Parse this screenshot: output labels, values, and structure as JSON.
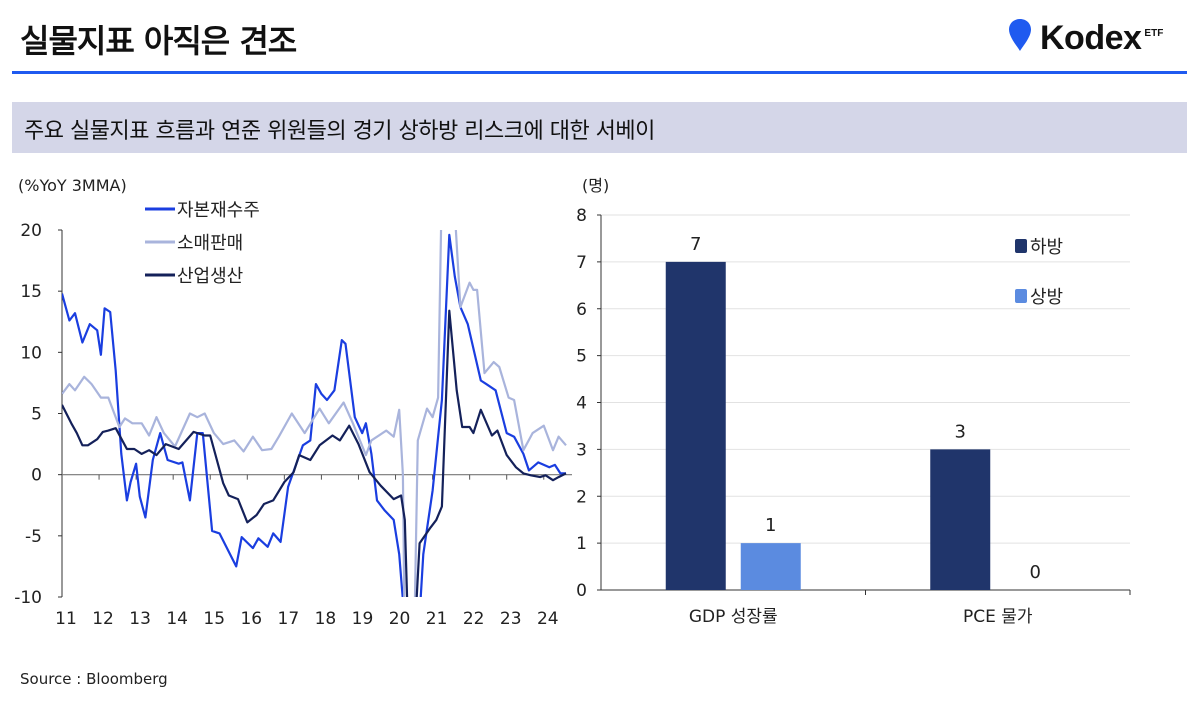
{
  "header": {
    "title": "실물지표 아직은 견조",
    "logo_text": "Kodex",
    "logo_suffix": "ETF",
    "brand_color": "#1f5af0"
  },
  "subtitle": "주요 실물지표 흐름과 연준 위원들의 경기 상하방 리스크에 대한 서베이",
  "source": "Source : Bloomberg",
  "chart_data": [
    {
      "type": "line",
      "ylabel": "(%YoY 3MMA)",
      "ylim": [
        -10,
        20
      ],
      "yticks": [
        "20",
        "15",
        "10",
        "5",
        "0",
        "-5",
        "-10"
      ],
      "xlim": [
        11,
        24.6
      ],
      "xticks": [
        "11",
        "12",
        "13",
        "14",
        "15",
        "16",
        "17",
        "18",
        "19",
        "20",
        "21",
        "22",
        "23",
        "24"
      ],
      "legend_position": "top-left",
      "series": [
        {
          "name": "자본재수주",
          "color": "#1a3ee0",
          "points": [
            [
              11.0,
              14.8
            ],
            [
              11.2,
              12.6
            ],
            [
              11.35,
              13.2
            ],
            [
              11.55,
              10.8
            ],
            [
              11.75,
              12.3
            ],
            [
              11.95,
              11.8
            ],
            [
              12.05,
              9.8
            ],
            [
              12.15,
              13.6
            ],
            [
              12.3,
              13.3
            ],
            [
              12.45,
              8.5
            ],
            [
              12.6,
              1.7
            ],
            [
              12.75,
              -2.1
            ],
            [
              12.85,
              -0.6
            ],
            [
              13.0,
              0.9
            ],
            [
              13.1,
              -1.8
            ],
            [
              13.25,
              -3.5
            ],
            [
              13.45,
              1.2
            ],
            [
              13.65,
              3.4
            ],
            [
              13.85,
              1.2
            ],
            [
              14.15,
              0.9
            ],
            [
              14.25,
              1.0
            ],
            [
              14.45,
              -2.1
            ],
            [
              14.65,
              3.4
            ],
            [
              14.8,
              3.4
            ],
            [
              15.05,
              -4.6
            ],
            [
              15.25,
              -4.8
            ],
            [
              15.7,
              -7.5
            ],
            [
              15.85,
              -5.1
            ],
            [
              16.15,
              -6.0
            ],
            [
              16.3,
              -5.2
            ],
            [
              16.55,
              -5.9
            ],
            [
              16.7,
              -4.8
            ],
            [
              16.9,
              -5.5
            ],
            [
              17.1,
              -1.0
            ],
            [
              17.5,
              2.4
            ],
            [
              17.7,
              2.8
            ],
            [
              17.85,
              7.4
            ],
            [
              18.0,
              6.6
            ],
            [
              18.15,
              6.1
            ],
            [
              18.35,
              6.9
            ],
            [
              18.55,
              11.0
            ],
            [
              18.65,
              10.7
            ],
            [
              18.9,
              4.7
            ],
            [
              19.1,
              3.4
            ],
            [
              19.2,
              4.2
            ],
            [
              19.35,
              1.7
            ],
            [
              19.5,
              -2.1
            ],
            [
              19.7,
              -2.9
            ],
            [
              19.95,
              -3.7
            ],
            [
              20.1,
              -6.5
            ],
            [
              20.3,
              -14
            ],
            [
              20.6,
              -14
            ],
            [
              20.75,
              -6.5
            ],
            [
              21.0,
              -1.3
            ],
            [
              21.25,
              6.1
            ],
            [
              21.45,
              19.6
            ],
            [
              21.6,
              16.2
            ],
            [
              21.75,
              13.7
            ],
            [
              21.95,
              12.3
            ],
            [
              22.3,
              7.7
            ],
            [
              22.45,
              7.4
            ],
            [
              22.7,
              6.9
            ],
            [
              23.0,
              3.4
            ],
            [
              23.2,
              3.1
            ],
            [
              23.45,
              1.7
            ],
            [
              23.6,
              0.35
            ],
            [
              23.85,
              1.0
            ],
            [
              24.15,
              0.6
            ],
            [
              24.3,
              0.8
            ],
            [
              24.45,
              0.1
            ],
            [
              24.6,
              0.1
            ]
          ]
        },
        {
          "name": "소매판매",
          "color": "#a9b4dc",
          "points": [
            [
              11.0,
              6.6
            ],
            [
              11.2,
              7.4
            ],
            [
              11.35,
              6.9
            ],
            [
              11.6,
              8.0
            ],
            [
              11.8,
              7.4
            ],
            [
              12.05,
              6.3
            ],
            [
              12.25,
              6.3
            ],
            [
              12.55,
              3.9
            ],
            [
              12.7,
              4.6
            ],
            [
              12.9,
              4.2
            ],
            [
              13.15,
              4.2
            ],
            [
              13.35,
              3.2
            ],
            [
              13.55,
              4.7
            ],
            [
              13.75,
              3.4
            ],
            [
              14.05,
              2.3
            ],
            [
              14.45,
              5.0
            ],
            [
              14.65,
              4.7
            ],
            [
              14.85,
              5.0
            ],
            [
              15.1,
              3.4
            ],
            [
              15.35,
              2.5
            ],
            [
              15.65,
              2.8
            ],
            [
              15.9,
              1.9
            ],
            [
              16.15,
              3.1
            ],
            [
              16.4,
              2.0
            ],
            [
              16.65,
              2.1
            ],
            [
              16.85,
              3.1
            ],
            [
              17.2,
              5.0
            ],
            [
              17.55,
              3.4
            ],
            [
              17.95,
              5.4
            ],
            [
              18.2,
              4.2
            ],
            [
              18.6,
              5.9
            ],
            [
              18.85,
              4.2
            ],
            [
              19.2,
              1.6
            ],
            [
              19.35,
              2.8
            ],
            [
              19.75,
              3.6
            ],
            [
              19.95,
              3.1
            ],
            [
              20.1,
              5.3
            ],
            [
              20.2,
              0
            ],
            [
              20.25,
              -14
            ],
            [
              20.5,
              -14
            ],
            [
              20.6,
              2.8
            ],
            [
              20.85,
              5.4
            ],
            [
              21.0,
              4.7
            ],
            [
              21.15,
              6.3
            ],
            [
              21.25,
              24
            ],
            [
              21.55,
              24
            ],
            [
              21.75,
              13.7
            ],
            [
              22.0,
              15.7
            ],
            [
              22.1,
              15.1
            ],
            [
              22.2,
              15.1
            ],
            [
              22.4,
              8.3
            ],
            [
              22.65,
              9.2
            ],
            [
              22.8,
              8.8
            ],
            [
              23.05,
              6.3
            ],
            [
              23.2,
              6.1
            ],
            [
              23.45,
              2.0
            ],
            [
              23.7,
              3.4
            ],
            [
              24.0,
              4.0
            ],
            [
              24.25,
              2.0
            ],
            [
              24.4,
              3.1
            ],
            [
              24.6,
              2.4
            ]
          ]
        },
        {
          "name": "산업생산",
          "color": "#14215a",
          "points": [
            [
              11.0,
              5.7
            ],
            [
              11.25,
              4.2
            ],
            [
              11.4,
              3.4
            ],
            [
              11.55,
              2.4
            ],
            [
              11.7,
              2.4
            ],
            [
              11.95,
              2.9
            ],
            [
              12.1,
              3.5
            ],
            [
              12.25,
              3.6
            ],
            [
              12.45,
              3.8
            ],
            [
              12.75,
              2.1
            ],
            [
              12.95,
              2.1
            ],
            [
              13.15,
              1.7
            ],
            [
              13.35,
              2.0
            ],
            [
              13.55,
              1.6
            ],
            [
              13.8,
              2.5
            ],
            [
              14.15,
              2.1
            ],
            [
              14.55,
              3.5
            ],
            [
              14.85,
              3.2
            ],
            [
              15.0,
              3.2
            ],
            [
              15.35,
              -0.7
            ],
            [
              15.5,
              -1.7
            ],
            [
              15.75,
              -2.0
            ],
            [
              16.0,
              -3.9
            ],
            [
              16.25,
              -3.3
            ],
            [
              16.45,
              -2.4
            ],
            [
              16.7,
              -2.1
            ],
            [
              17.0,
              -0.6
            ],
            [
              17.25,
              0.2
            ],
            [
              17.4,
              1.6
            ],
            [
              17.7,
              1.2
            ],
            [
              17.95,
              2.4
            ],
            [
              18.3,
              3.2
            ],
            [
              18.5,
              2.8
            ],
            [
              18.75,
              4.0
            ],
            [
              19.0,
              2.5
            ],
            [
              19.3,
              0.2
            ],
            [
              19.6,
              -0.9
            ],
            [
              19.95,
              -2.0
            ],
            [
              20.15,
              -1.7
            ],
            [
              20.25,
              -3.7
            ],
            [
              20.35,
              -14
            ],
            [
              20.5,
              -14
            ],
            [
              20.65,
              -5.6
            ],
            [
              20.95,
              -4.3
            ],
            [
              21.1,
              -3.7
            ],
            [
              21.25,
              -2.6
            ],
            [
              21.45,
              13.4
            ],
            [
              21.65,
              6.9
            ],
            [
              21.8,
              3.9
            ],
            [
              22.0,
              3.9
            ],
            [
              22.1,
              3.4
            ],
            [
              22.3,
              5.3
            ],
            [
              22.6,
              3.2
            ],
            [
              22.75,
              3.6
            ],
            [
              23.0,
              1.6
            ],
            [
              23.25,
              0.6
            ],
            [
              23.45,
              0.1
            ],
            [
              23.65,
              -0.05
            ],
            [
              23.9,
              -0.2
            ],
            [
              24.05,
              -0.05
            ],
            [
              24.25,
              -0.45
            ],
            [
              24.4,
              -0.2
            ],
            [
              24.6,
              0.1
            ]
          ]
        }
      ]
    },
    {
      "type": "bar",
      "ylabel": "(명)",
      "ylim": [
        0,
        8
      ],
      "yticks": [
        "0",
        "1",
        "2",
        "3",
        "4",
        "5",
        "6",
        "7",
        "8"
      ],
      "grid": true,
      "legend_position": "top-right",
      "categories": [
        "GDP 성장률",
        "PCE 물가"
      ],
      "series": [
        {
          "name": "하방",
          "color": "#20356b",
          "values": [
            7,
            3
          ],
          "labels": [
            "7",
            "3"
          ]
        },
        {
          "name": "상방",
          "color": "#5b8be0",
          "values": [
            1,
            0
          ],
          "labels": [
            "1",
            "0"
          ]
        }
      ]
    }
  ]
}
